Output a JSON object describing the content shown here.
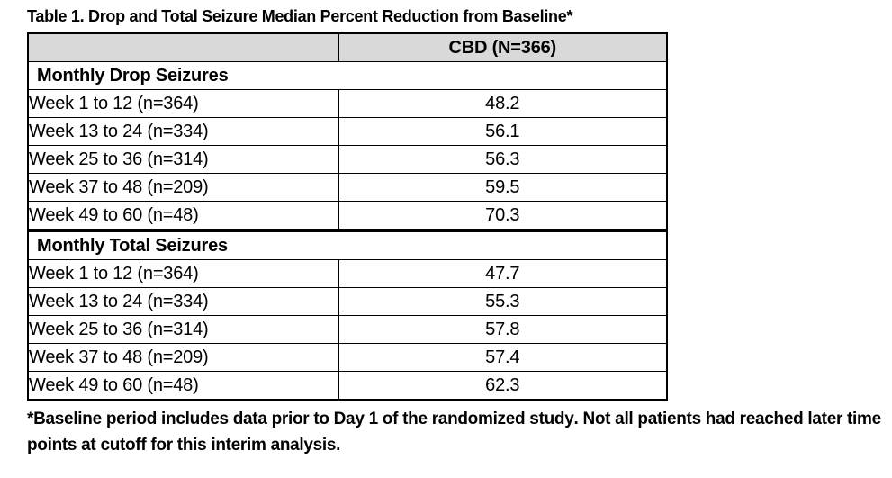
{
  "title": "Table 1. Drop and Total Seizure Median Percent Reduction from Baseline*",
  "table": {
    "header": {
      "col1": "",
      "col2": "CBD (N=366)"
    },
    "sections": [
      {
        "label": "Monthly Drop Seizures",
        "rows": [
          {
            "label": "Week 1 to 12 (n=364)",
            "value": "48.2"
          },
          {
            "label": "Week 13 to 24 (n=334)",
            "value": "56.1"
          },
          {
            "label": "Week 25 to 36 (n=314)",
            "value": "56.3"
          },
          {
            "label": "Week 37 to 48 (n=209)",
            "value": "59.5"
          },
          {
            "label": "Week 49 to 60 (n=48)",
            "value": "70.3"
          }
        ]
      },
      {
        "label": "Monthly Total Seizures",
        "rows": [
          {
            "label": "Week 1 to 12 (n=364)",
            "value": "47.7"
          },
          {
            "label": "Week 13 to 24 (n=334)",
            "value": "55.3"
          },
          {
            "label": "Week 25 to 36 (n=314)",
            "value": "57.8"
          },
          {
            "label": "Week 37 to 48 (n=209)",
            "value": "57.4"
          },
          {
            "label": "Week 49 to 60 (n=48)",
            "value": "62.3"
          }
        ]
      }
    ]
  },
  "footnote": {
    "part1": "*Baseline period includes data prior to Day 1 of the randomized study",
    "bold_period": ".",
    "part2": " Not all patients had reached later time points at cutoff for this interim analysis."
  },
  "colors": {
    "header_bg": "#d9d9d9",
    "border": "#000000",
    "text": "#000000"
  }
}
